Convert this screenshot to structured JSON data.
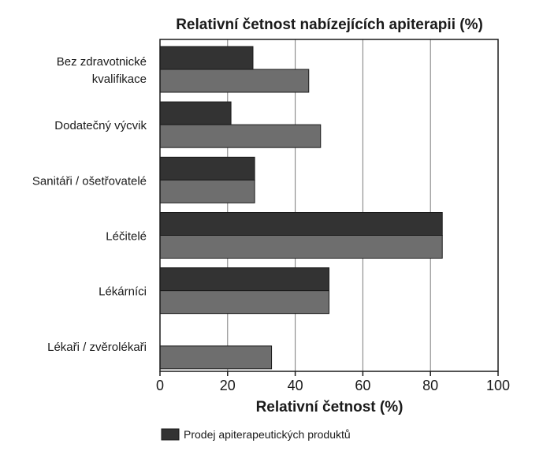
{
  "chart_data": {
    "type": "bar",
    "orientation": "horizontal",
    "title": "Relativní četnost nabízejících apiterapii (%)",
    "xlabel": "Relativní četnost (%)",
    "ylabel": "",
    "xlim": [
      0,
      100
    ],
    "xticks": [
      0,
      20,
      40,
      60,
      80,
      100
    ],
    "grid": true,
    "legend_position": "bottom",
    "categories": [
      [
        "Bez zdravotnické",
        "kvalifikace"
      ],
      [
        "Dodatečný výcvik"
      ],
      [
        "Sanitáři / ošetřovatelé"
      ],
      [
        "Léčitelé"
      ],
      [
        "Lékárníci"
      ],
      [
        "Lékaři / zvěrolékaři"
      ]
    ],
    "series": [
      {
        "name": "Prodej apiterapeutických produktů",
        "color": "#333333",
        "values": [
          27.5,
          21,
          28,
          83.5,
          50,
          null
        ]
      },
      {
        "name": "",
        "color": "#6e6e6e",
        "values": [
          44,
          47.5,
          28,
          83.5,
          50,
          33
        ]
      }
    ],
    "legend": [
      {
        "label": "Prodej apiterapeutických produktů",
        "color": "#333333"
      }
    ]
  }
}
